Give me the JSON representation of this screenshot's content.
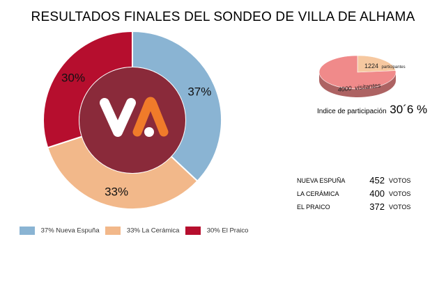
{
  "title": "RESULTADOS FINALES DEL SONDEO DE VILLA DE ALHAMA",
  "chart_data": [
    {
      "type": "pie",
      "title": "",
      "categories": [
        "Nueva Espuña",
        "La Cerámica",
        "El Praico"
      ],
      "values": [
        37,
        33,
        30
      ],
      "value_labels": [
        "37%",
        "33%",
        "30%"
      ],
      "colors": [
        "#8ab4d3",
        "#f2b88a",
        "#b60e2e"
      ],
      "center_color": "#8a2a3a",
      "center_logo": "VA",
      "legend": [
        {
          "label": "37% Nueva Espuña",
          "color": "#8ab4d3"
        },
        {
          "label": "33% La Cerámica",
          "color": "#f2b88a"
        },
        {
          "label": "30% El Praico",
          "color": "#b60e2e"
        }
      ],
      "legend_position": "bottom"
    },
    {
      "type": "pie",
      "title": "",
      "categories": [
        "participantes",
        "visitantes"
      ],
      "values": [
        1224,
        4000
      ],
      "labels": [
        {
          "number": "1224",
          "word": "participantes"
        },
        {
          "number": "4000",
          "word": "visitantes"
        }
      ],
      "colors": [
        "#f6c8a0",
        "#f08a8a"
      ]
    }
  ],
  "participation": {
    "label": "Indice de participación",
    "value": "30´6 %"
  },
  "votes": {
    "rows": [
      {
        "name": "NUEVA ESPUÑA",
        "count": "452",
        "unit": "VOTOS"
      },
      {
        "name": "LA CERÁMICA",
        "count": "400",
        "unit": "VOTOS"
      },
      {
        "name": "EL PRAICO",
        "count": "372",
        "unit": "VOTOS"
      }
    ]
  }
}
